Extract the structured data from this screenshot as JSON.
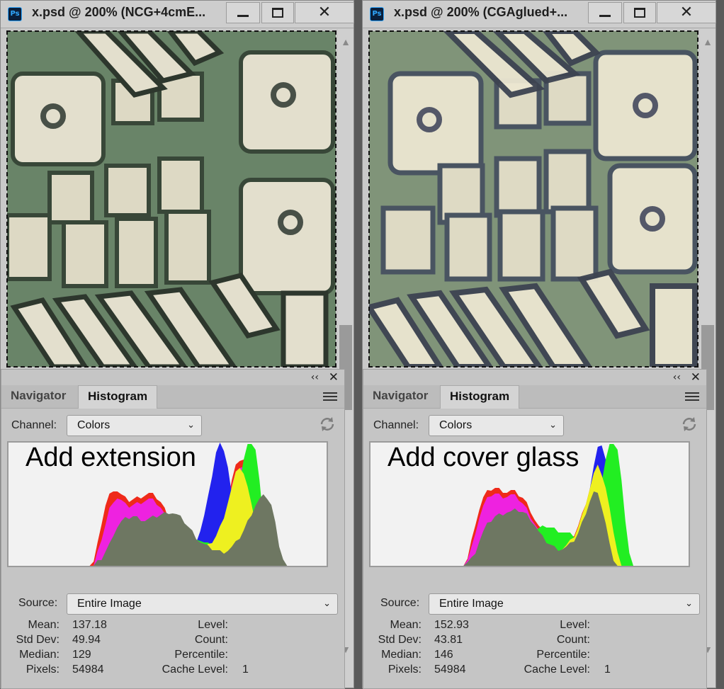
{
  "windows": [
    {
      "title": "x.psd @ 200% (NCG+4cmE...",
      "annotation": "Add extension",
      "tabs": [
        "Navigator",
        "Histogram"
      ],
      "channel_label": "Channel:",
      "channel_value": "Colors",
      "source_label": "Source:",
      "source_value": "Entire Image",
      "stats_left": [
        {
          "k": "Mean:",
          "v": "137.18"
        },
        {
          "k": "Std Dev:",
          "v": "49.94"
        },
        {
          "k": "Median:",
          "v": "129"
        },
        {
          "k": "Pixels:",
          "v": "54984"
        }
      ],
      "stats_right": [
        {
          "k": "Level:",
          "v": ""
        },
        {
          "k": "Count:",
          "v": ""
        },
        {
          "k": "Percentile:",
          "v": ""
        },
        {
          "k": "Cache Level:",
          "v": "1"
        }
      ],
      "histogram": {
        "gray": [
          0,
          0,
          0,
          0,
          0,
          0,
          0,
          0,
          0,
          0,
          5,
          10,
          20,
          30,
          45,
          55,
          62,
          66,
          68,
          70,
          68,
          66,
          64,
          66,
          68,
          70,
          72,
          74,
          76,
          75,
          72,
          68,
          62,
          55,
          48,
          40,
          34,
          30,
          26,
          24,
          22,
          20,
          20,
          22,
          26,
          32,
          40,
          50,
          62,
          74,
          86,
          94,
          98,
          96,
          86,
          60,
          30,
          10,
          0,
          0,
          0,
          0
        ],
        "red": [
          0,
          0,
          0,
          0,
          0,
          0,
          0,
          0,
          0,
          5,
          30,
          60,
          85,
          100,
          108,
          106,
          100,
          95,
          92,
          94,
          96,
          98,
          100,
          102,
          100,
          96,
          90,
          80,
          68,
          56,
          46,
          38,
          32,
          28,
          24,
          22,
          22,
          24,
          28,
          34,
          44,
          58,
          74,
          92,
          120,
          140,
          150,
          150,
          140,
          110,
          80,
          40,
          20,
          0,
          0,
          0,
          0,
          0,
          0,
          0,
          0,
          0
        ],
        "magenta": [
          0,
          0,
          0,
          0,
          0,
          0,
          0,
          0,
          0,
          0,
          18,
          38,
          58,
          80,
          92,
          96,
          92,
          86,
          84,
          86,
          88,
          90,
          92,
          94,
          92,
          88,
          82,
          72,
          62,
          52,
          42,
          34,
          28,
          24,
          20,
          18,
          18,
          20,
          24,
          30,
          40,
          54,
          72,
          90,
          112,
          130,
          140,
          140,
          126,
          100,
          70,
          40,
          15,
          0,
          0,
          0,
          0,
          0,
          0,
          0,
          0,
          0
        ],
        "yellow": [
          0,
          0,
          0,
          0,
          0,
          0,
          0,
          0,
          0,
          0,
          0,
          0,
          10,
          20,
          30,
          40,
          45,
          48,
          50,
          50,
          48,
          46,
          44,
          42,
          40,
          38,
          36,
          34,
          30,
          28,
          26,
          24,
          22,
          20,
          20,
          20,
          22,
          24,
          28,
          34,
          42,
          54,
          70,
          90,
          110,
          130,
          140,
          130,
          110,
          90,
          60,
          30,
          10,
          0,
          0,
          0,
          0,
          0,
          0,
          0,
          0,
          0
        ],
        "green": [
          0,
          0,
          0,
          0,
          0,
          0,
          0,
          0,
          0,
          0,
          0,
          0,
          8,
          16,
          26,
          34,
          40,
          44,
          46,
          46,
          44,
          42,
          40,
          40,
          40,
          42,
          44,
          46,
          48,
          50,
          52,
          54,
          56,
          52,
          46,
          40,
          36,
          32,
          30,
          30,
          32,
          36,
          44,
          56,
          72,
          92,
          120,
          150,
          170,
          175,
          165,
          120,
          60,
          20,
          0,
          0,
          0,
          0,
          0,
          0,
          0,
          0
        ],
        "blue": [
          0,
          0,
          0,
          0,
          0,
          0,
          0,
          0,
          0,
          0,
          0,
          0,
          0,
          0,
          0,
          0,
          0,
          0,
          0,
          0,
          0,
          0,
          0,
          0,
          0,
          0,
          0,
          0,
          0,
          0,
          0,
          0,
          0,
          0,
          24,
          36,
          50,
          70,
          96,
          128,
          160,
          172,
          165,
          140,
          100,
          60,
          30,
          10,
          0,
          0,
          0,
          0,
          0,
          0,
          0,
          0,
          0,
          0,
          0,
          0,
          0,
          0
        ]
      }
    },
    {
      "title": "x.psd @ 200% (CGAglued+...",
      "annotation": "Add cover glass",
      "tabs": [
        "Navigator",
        "Histogram"
      ],
      "channel_label": "Channel:",
      "channel_value": "Colors",
      "source_label": "Source:",
      "source_value": "Entire Image",
      "stats_left": [
        {
          "k": "Mean:",
          "v": "152.93"
        },
        {
          "k": "Std Dev:",
          "v": "43.81"
        },
        {
          "k": "Median:",
          "v": "146"
        },
        {
          "k": "Pixels:",
          "v": "54984"
        }
      ],
      "stats_right": [
        {
          "k": "Level:",
          "v": ""
        },
        {
          "k": "Count:",
          "v": ""
        },
        {
          "k": "Percentile:",
          "v": ""
        },
        {
          "k": "Cache Level:",
          "v": "1"
        }
      ],
      "histogram": {
        "gray": [
          0,
          0,
          0,
          0,
          0,
          0,
          0,
          0,
          0,
          0,
          0,
          0,
          5,
          10,
          20,
          35,
          48,
          58,
          64,
          70,
          72,
          74,
          76,
          76,
          78,
          78,
          76,
          72,
          66,
          58,
          48,
          40,
          34,
          30,
          26,
          24,
          24,
          26,
          30,
          36,
          46,
          60,
          76,
          92,
          104,
          100,
          84,
          60,
          30,
          10,
          0,
          0,
          0,
          0,
          0,
          0,
          0,
          0,
          0,
          0,
          0,
          0
        ],
        "red": [
          0,
          0,
          0,
          0,
          0,
          0,
          0,
          0,
          0,
          0,
          0,
          0,
          10,
          35,
          60,
          80,
          96,
          104,
          108,
          110,
          108,
          106,
          104,
          106,
          104,
          100,
          96,
          88,
          78,
          66,
          56,
          48,
          40,
          34,
          30,
          28,
          28,
          30,
          36,
          44,
          56,
          72,
          90,
          110,
          130,
          140,
          150,
          150,
          140,
          100,
          60,
          20,
          0,
          0,
          0,
          0,
          0,
          0,
          0,
          0,
          0,
          0
        ],
        "magenta": [
          0,
          0,
          0,
          0,
          0,
          0,
          0,
          0,
          0,
          0,
          0,
          0,
          8,
          25,
          48,
          68,
          84,
          94,
          100,
          102,
          100,
          98,
          98,
          100,
          98,
          94,
          88,
          80,
          70,
          60,
          50,
          42,
          36,
          30,
          26,
          24,
          24,
          26,
          30,
          36,
          46,
          60,
          76,
          96,
          116,
          130,
          138,
          136,
          120,
          90,
          50,
          20,
          0,
          0,
          0,
          0,
          0,
          0,
          0,
          0,
          0,
          0
        ],
        "yellow": [
          0,
          0,
          0,
          0,
          0,
          0,
          0,
          0,
          0,
          0,
          0,
          0,
          0,
          0,
          10,
          20,
          30,
          38,
          42,
          44,
          44,
          42,
          40,
          38,
          36,
          34,
          32,
          30,
          28,
          26,
          24,
          22,
          20,
          20,
          20,
          22,
          24,
          28,
          34,
          42,
          54,
          70,
          90,
          110,
          130,
          140,
          130,
          110,
          80,
          50,
          20,
          0,
          0,
          0,
          0,
          0,
          0,
          0,
          0,
          0,
          0,
          0
        ],
        "green": [
          0,
          0,
          0,
          0,
          0,
          0,
          0,
          0,
          0,
          0,
          0,
          0,
          0,
          0,
          8,
          16,
          26,
          34,
          40,
          44,
          46,
          46,
          44,
          42,
          40,
          42,
          44,
          46,
          48,
          50,
          52,
          54,
          56,
          54,
          52,
          50,
          48,
          46,
          44,
          42,
          42,
          44,
          48,
          56,
          70,
          90,
          120,
          150,
          170,
          175,
          165,
          120,
          60,
          20,
          0,
          0,
          0,
          0,
          0,
          0,
          0,
          0
        ],
        "blue": [
          0,
          0,
          0,
          0,
          0,
          0,
          0,
          0,
          0,
          0,
          0,
          0,
          0,
          0,
          0,
          0,
          0,
          0,
          0,
          0,
          0,
          0,
          0,
          0,
          0,
          0,
          0,
          0,
          0,
          0,
          0,
          0,
          0,
          0,
          0,
          0,
          0,
          0,
          0,
          0,
          30,
          52,
          80,
          110,
          140,
          165,
          172,
          150,
          110,
          60,
          20,
          0,
          0,
          0,
          0,
          0,
          0,
          0,
          0,
          0,
          0,
          0
        ]
      }
    }
  ],
  "colors": {
    "red": "#ef2a1a",
    "magenta": "#ee22e0",
    "yellow": "#eef020",
    "green": "#22ee22",
    "blue": "#2222ee",
    "gray": "#6e7762",
    "cyan": "#22e8e8"
  }
}
